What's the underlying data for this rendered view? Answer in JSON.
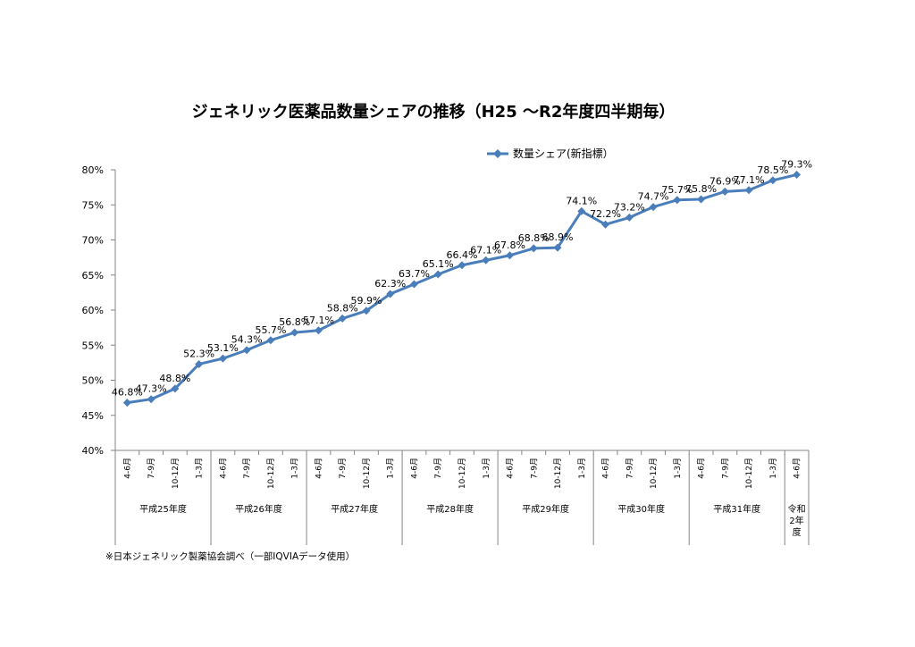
{
  "chart_data": {
    "type": "line",
    "title": "ジェネリック医薬品数量シェアの推移（H25 ～R2年度四半期毎）",
    "legend": "数量シェア(新指標）",
    "legend_position": "top-right",
    "ylim": [
      40,
      80
    ],
    "yticks": [
      "40%",
      "45%",
      "50%",
      "55%",
      "60%",
      "65%",
      "70%",
      "75%",
      "80%"
    ],
    "grid": false,
    "categories": [
      "4-6月",
      "7-9月",
      "10-12月",
      "1-3月",
      "4-6月",
      "7-9月",
      "10-12月",
      "1-3月",
      "4-6月",
      "7-9月",
      "10-12月",
      "1-3月",
      "4-6月",
      "7-9月",
      "10-12月",
      "1-3月",
      "4-6月",
      "7-9月",
      "10-12月",
      "1-3月",
      "4-6月",
      "7-9月",
      "10-12月",
      "1-3月",
      "4-6月",
      "7-9月",
      "10-12月",
      "1-3月",
      "4-6月"
    ],
    "year_groups": [
      {
        "label": "平成25年度",
        "count": 4
      },
      {
        "label": "平成26年度",
        "count": 4
      },
      {
        "label": "平成27年度",
        "count": 4
      },
      {
        "label": "平成28年度",
        "count": 4
      },
      {
        "label": "平成29年度",
        "count": 4
      },
      {
        "label": "平成30年度",
        "count": 4
      },
      {
        "label": "平成31年度",
        "count": 4
      },
      {
        "label": "令和2年度",
        "lines": [
          "令和",
          "2年",
          "度"
        ],
        "count": 1
      }
    ],
    "series": [
      {
        "name": "数量シェア(新指標）",
        "color": "#4a7ebb",
        "values": [
          46.8,
          47.3,
          48.8,
          52.3,
          53.1,
          54.3,
          55.7,
          56.8,
          57.1,
          58.8,
          59.9,
          62.3,
          63.7,
          65.1,
          66.4,
          67.1,
          67.8,
          68.8,
          68.9,
          74.1,
          72.2,
          73.2,
          74.7,
          75.7,
          75.8,
          76.9,
          77.1,
          78.5,
          79.3
        ],
        "labels": [
          "46.8%",
          "47.3%",
          "48.8%",
          "52.3%",
          "53.1%",
          "54.3%",
          "55.7%",
          "56.8%",
          "57.1%",
          "58.8%",
          "59.9%",
          "62.3%",
          "63.7%",
          "65.1%",
          "66.4%",
          "67.1%",
          "67.8%",
          "68.8%",
          "68.9%",
          "74.1%",
          "72.2%",
          "73.2%",
          "74.7%",
          "75.7%",
          "75.8%",
          "76.9%",
          "77.1%",
          "78.5%",
          "79.3%"
        ]
      }
    ]
  },
  "footnote": "※日本ジェネリック製薬協会調べ（一部IQVIAデータ使用）"
}
